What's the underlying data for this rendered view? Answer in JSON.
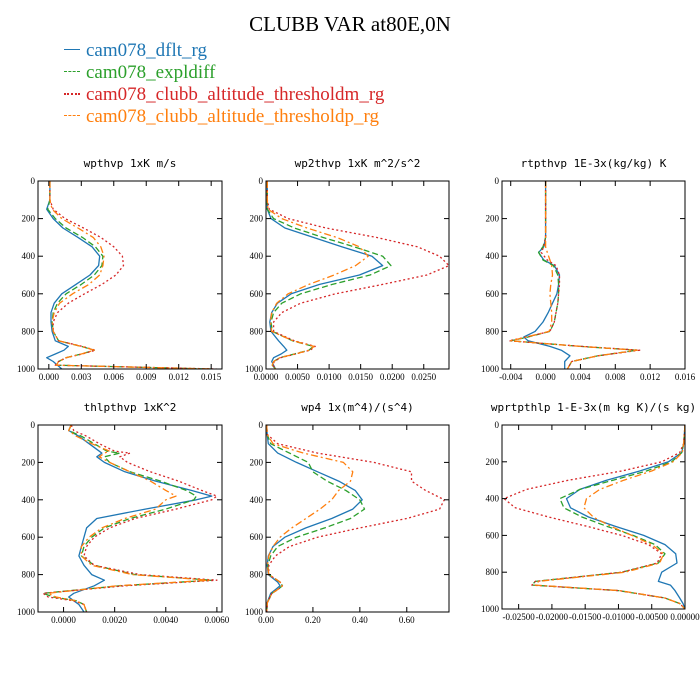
{
  "title": "CLUBB VAR at80E,0N",
  "legend": [
    {
      "name": "cam078_dflt_rg",
      "color": "#1f77b4",
      "dash": "solid"
    },
    {
      "name": "cam078_expldiff",
      "color": "#2ca02c",
      "dash": "dash"
    },
    {
      "name": "cam078_clubb_altitude_thresholdm_rg",
      "color": "#d62728",
      "dash": "dot"
    },
    {
      "name": "cam078_clubb_altitude_thresholdp_rg",
      "color": "#ff7f0e",
      "dash": "dashdot"
    }
  ],
  "chart_data": [
    {
      "type": "line",
      "title": "wpthvp  1xK m/s",
      "xlim": [
        -0.001,
        0.016
      ],
      "ylim": [
        1000,
        0
      ],
      "xticks": [
        "0.000",
        "0.003",
        "0.006",
        "0.009",
        "0.012",
        "0.015"
      ],
      "xtick_values": [
        0.0,
        0.003,
        0.006,
        0.009,
        0.012,
        0.015
      ],
      "yticks": [
        "0",
        "200",
        "400",
        "600",
        "800",
        "1000"
      ],
      "ytick_values": [
        0,
        200,
        400,
        600,
        800,
        1000
      ],
      "y": [
        0,
        100,
        150,
        200,
        250,
        300,
        350,
        400,
        450,
        500,
        550,
        600,
        650,
        700,
        750,
        800,
        850,
        880,
        900,
        920,
        940,
        960,
        980,
        1000
      ],
      "series": [
        {
          "name": "cam078_dflt_rg",
          "x": [
            0.0001,
            0.0001,
            -0.0002,
            0.0004,
            0.0013,
            0.0027,
            0.004,
            0.0047,
            0.0046,
            0.0038,
            0.0025,
            0.0012,
            0.0005,
            0.0002,
            0.0002,
            0.0003,
            0.0006,
            0.0018,
            0.0014,
            0.0006,
            -0.0002,
            0.0004,
            0.0008,
            0.0012
          ]
        },
        {
          "name": "cam078_expldiff",
          "x": [
            0.0001,
            0.0001,
            -0.0001,
            0.0006,
            0.0016,
            0.0031,
            0.0043,
            0.005,
            0.0049,
            0.0042,
            0.003,
            0.0016,
            0.0008,
            0.0004,
            0.0003,
            0.0004,
            0.0009,
            0.003,
            0.0042,
            0.003,
            0.0016,
            0.0009,
            0.0007,
            0.015
          ]
        },
        {
          "name": "cam078_clubb_altitude_thresholdm_rg",
          "x": [
            0.0001,
            0.0001,
            0.0004,
            0.0015,
            0.0032,
            0.0048,
            0.006,
            0.0068,
            0.0069,
            0.0062,
            0.0049,
            0.0033,
            0.0018,
            0.0008,
            0.0004,
            0.0004,
            0.0009,
            0.0031,
            0.0043,
            0.0031,
            0.0016,
            0.0009,
            0.0006,
            0.0155
          ]
        },
        {
          "name": "cam078_clubb_altitude_thresholdp_rg",
          "x": [
            0.0001,
            0.0001,
            0.0003,
            0.0012,
            0.0027,
            0.0041,
            0.0048,
            0.0051,
            0.005,
            0.0047,
            0.0037,
            0.0022,
            0.001,
            0.0005,
            0.0003,
            0.0004,
            0.0009,
            0.003,
            0.0042,
            0.003,
            0.0016,
            0.0009,
            0.0007,
            0.015
          ]
        }
      ]
    },
    {
      "type": "line",
      "title": "wp2thvp  1xK m^2/s^2",
      "xlim": [
        0.0,
        0.029
      ],
      "ylim": [
        1000,
        0
      ],
      "xticks": [
        "0.0000",
        "0.0050",
        "0.0100",
        "0.0150",
        "0.0200",
        "0.0250"
      ],
      "xtick_values": [
        0.0,
        0.005,
        0.01,
        0.015,
        0.02,
        0.025
      ],
      "yticks": [
        "0",
        "200",
        "400",
        "600",
        "800",
        "1000"
      ],
      "ytick_values": [
        0,
        200,
        400,
        600,
        800,
        1000
      ],
      "y": [
        0,
        100,
        150,
        200,
        250,
        300,
        350,
        400,
        450,
        500,
        550,
        600,
        650,
        700,
        750,
        800,
        850,
        880,
        900,
        920,
        940,
        960,
        980,
        1000
      ],
      "series": [
        {
          "name": "cam078_dflt_rg",
          "x": [
            0.0002,
            0.0002,
            0.0002,
            0.0008,
            0.003,
            0.0075,
            0.012,
            0.0168,
            0.0185,
            0.0148,
            0.0085,
            0.004,
            0.0018,
            0.0009,
            0.0006,
            0.0008,
            0.002,
            0.0028,
            0.0033,
            0.0024,
            0.0012,
            0.0009,
            0.0012,
            0.0015
          ]
        },
        {
          "name": "cam078_expldiff",
          "x": [
            0.0002,
            0.0002,
            0.0002,
            0.0012,
            0.0045,
            0.009,
            0.014,
            0.0185,
            0.0198,
            0.0165,
            0.0105,
            0.0055,
            0.0025,
            0.0012,
            0.0008,
            0.001,
            0.0042,
            0.0075,
            0.0068,
            0.0045,
            0.0022,
            0.0012,
            0.001,
            0.0015
          ]
        },
        {
          "name": "cam078_clubb_altitude_thresholdm_rg",
          "x": [
            0.0002,
            0.0002,
            0.0005,
            0.0035,
            0.0095,
            0.0175,
            0.024,
            0.0275,
            0.029,
            0.0255,
            0.0185,
            0.011,
            0.0055,
            0.0025,
            0.0012,
            0.0012,
            0.0045,
            0.0078,
            0.007,
            0.0047,
            0.0023,
            0.0013,
            0.0011,
            0.0015
          ]
        },
        {
          "name": "cam078_clubb_altitude_thresholdp_rg",
          "x": [
            0.0002,
            0.0002,
            0.0003,
            0.0025,
            0.0065,
            0.0112,
            0.0148,
            0.0162,
            0.0142,
            0.0108,
            0.0068,
            0.0035,
            0.0017,
            0.0009,
            0.0007,
            0.0009,
            0.0043,
            0.0076,
            0.0069,
            0.0046,
            0.0022,
            0.0012,
            0.001,
            0.0015
          ]
        }
      ]
    },
    {
      "type": "line",
      "title": "rtpthvp  1E-3x(kg/kg) K",
      "xlim": [
        -0.005,
        0.016
      ],
      "ylim": [
        1000,
        0
      ],
      "xticks": [
        "-0.004",
        "0.000",
        "0.004",
        "0.008",
        "0.012",
        "0.016"
      ],
      "xtick_values": [
        -0.004,
        0.0,
        0.004,
        0.008,
        0.012,
        0.016
      ],
      "yticks": [
        "0",
        "200",
        "400",
        "600",
        "800",
        "1000"
      ],
      "ytick_values": [
        0,
        200,
        400,
        600,
        800,
        1000
      ],
      "y": [
        0,
        100,
        200,
        300,
        350,
        380,
        420,
        450,
        500,
        550,
        600,
        650,
        700,
        750,
        800,
        830,
        850,
        880,
        900,
        930,
        960,
        1000
      ],
      "series": [
        {
          "name": "cam078_dflt_rg",
          "x": [
            0.0,
            0.0,
            0.0,
            0.0,
            -0.0002,
            -0.0008,
            -0.0002,
            0.001,
            0.0016,
            0.0015,
            0.0013,
            0.0008,
            0.0003,
            -0.0003,
            -0.0012,
            -0.0025,
            -0.002,
            0.0005,
            0.0018,
            0.0028,
            0.0022,
            0.0022
          ]
        },
        {
          "name": "cam078_expldiff",
          "x": [
            0.0,
            0.0,
            0.0,
            0.0,
            -0.0003,
            -0.0008,
            -0.0003,
            0.0009,
            0.0014,
            0.0015,
            0.0015,
            0.0014,
            0.0012,
            0.001,
            0.0005,
            -0.002,
            -0.004,
            0.004,
            0.0105,
            0.006,
            0.003,
            0.0025
          ]
        },
        {
          "name": "cam078_clubb_altitude_thresholdm_rg",
          "x": [
            0.0,
            0.0,
            0.0,
            0.0,
            -0.0002,
            -0.0005,
            0.0002,
            0.0012,
            0.0016,
            0.0016,
            0.0015,
            0.0014,
            0.0012,
            0.001,
            0.0005,
            -0.0022,
            -0.0042,
            0.0042,
            0.0108,
            0.006,
            0.003,
            0.0025
          ]
        },
        {
          "name": "cam078_clubb_altitude_thresholdp_rg",
          "x": [
            0.0,
            0.0,
            0.0,
            0.0,
            0.0,
            0.0002,
            0.0005,
            0.0007,
            0.0008,
            0.0006,
            0.0005,
            0.0006,
            0.0007,
            0.0007,
            0.0004,
            -0.0022,
            -0.004,
            0.004,
            0.0105,
            0.006,
            0.003,
            0.0025
          ]
        }
      ]
    },
    {
      "type": "line",
      "title": "thlpthvp  1xK^2",
      "xlim": [
        -0.001,
        0.0062
      ],
      "ylim": [
        1000,
        0
      ],
      "xticks": [
        "0.0000",
        "0.0020",
        "0.0040",
        "0.0060"
      ],
      "xtick_values": [
        0.0,
        0.002,
        0.004,
        0.006
      ],
      "yticks": [
        "0",
        "200",
        "400",
        "600",
        "800",
        "1000"
      ],
      "ytick_values": [
        0,
        200,
        400,
        600,
        800,
        1000
      ],
      "y": [
        0,
        30,
        60,
        100,
        140,
        150,
        170,
        200,
        250,
        300,
        350,
        380,
        400,
        450,
        500,
        550,
        600,
        650,
        700,
        750,
        800,
        830,
        860,
        900,
        920,
        940,
        960,
        1000
      ],
      "series": [
        {
          "name": "cam078_dflt_rg",
          "x": [
            0.0003,
            0.0002,
            0.0006,
            0.001,
            0.0014,
            0.0015,
            0.0013,
            0.0016,
            0.0024,
            0.0036,
            0.005,
            0.0058,
            0.0052,
            0.0032,
            0.0013,
            0.0009,
            0.0008,
            0.0007,
            0.0006,
            0.0008,
            0.0011,
            0.0016,
            0.0012,
            0.0004,
            0.0002,
            0.0004,
            0.0006,
            0.0008
          ]
        },
        {
          "name": "cam078_expldiff",
          "x": [
            0.0003,
            0.0002,
            0.0007,
            0.0012,
            0.0017,
            0.0022,
            0.0016,
            0.0018,
            0.0026,
            0.0038,
            0.0048,
            0.0052,
            0.0051,
            0.004,
            0.0026,
            0.0016,
            0.0011,
            0.0008,
            0.0007,
            0.0012,
            0.0028,
            0.0058,
            0.0022,
            -0.0008,
            -0.0004,
            0.0005,
            0.0008,
            0.0009
          ]
        },
        {
          "name": "cam078_clubb_altitude_thresholdm_rg",
          "x": [
            0.0003,
            0.0004,
            0.0009,
            0.0014,
            0.002,
            0.0026,
            0.0022,
            0.0025,
            0.0034,
            0.0045,
            0.0054,
            0.006,
            0.0058,
            0.0044,
            0.0028,
            0.0018,
            0.0012,
            0.0009,
            0.0008,
            0.0012,
            0.003,
            0.006,
            0.0024,
            -0.0008,
            -0.0006,
            0.0004,
            0.0008,
            0.0009
          ]
        },
        {
          "name": "cam078_clubb_altitude_thresholdp_rg",
          "x": [
            0.0003,
            0.0002,
            0.0005,
            0.0011,
            0.0018,
            0.0016,
            0.0014,
            0.0018,
            0.0026,
            0.0034,
            0.004,
            0.0044,
            0.004,
            0.0036,
            0.0024,
            0.0015,
            0.001,
            0.0007,
            0.0007,
            0.0011,
            0.0027,
            0.0057,
            0.0021,
            -0.0006,
            -0.0003,
            0.0005,
            0.0008,
            0.0009
          ]
        }
      ]
    },
    {
      "type": "line",
      "title": "wp4  1x(m^4)/(s^4)",
      "xlim": [
        0.0,
        0.78
      ],
      "ylim": [
        1000,
        0
      ],
      "xticks": [
        "0.00",
        "0.20",
        "0.40",
        "0.60"
      ],
      "xtick_values": [
        0.0,
        0.2,
        0.4,
        0.6
      ],
      "yticks": [
        "0",
        "200",
        "400",
        "600",
        "800",
        "1000"
      ],
      "ytick_values": [
        0,
        200,
        400,
        600,
        800,
        1000
      ],
      "y": [
        0,
        50,
        100,
        150,
        200,
        250,
        300,
        350,
        400,
        450,
        500,
        550,
        600,
        650,
        700,
        750,
        800,
        840,
        860,
        880,
        900,
        950,
        1000
      ],
      "series": [
        {
          "name": "cam078_dflt_rg",
          "x": [
            0.003,
            0.005,
            0.01,
            0.05,
            0.13,
            0.22,
            0.31,
            0.38,
            0.41,
            0.37,
            0.28,
            0.17,
            0.08,
            0.03,
            0.01,
            0.005,
            0.01,
            0.05,
            0.06,
            0.04,
            0.02,
            0.005,
            0.003
          ]
        },
        {
          "name": "cam078_expldiff",
          "x": [
            0.003,
            0.005,
            0.02,
            0.1,
            0.18,
            0.2,
            0.26,
            0.34,
            0.4,
            0.42,
            0.36,
            0.25,
            0.13,
            0.05,
            0.02,
            0.008,
            0.012,
            0.06,
            0.07,
            0.05,
            0.025,
            0.006,
            0.003
          ]
        },
        {
          "name": "cam078_clubb_altitude_thresholdm_rg",
          "x": [
            0.003,
            0.005,
            0.05,
            0.22,
            0.46,
            0.62,
            0.62,
            0.68,
            0.76,
            0.74,
            0.6,
            0.4,
            0.22,
            0.1,
            0.04,
            0.012,
            0.012,
            0.06,
            0.07,
            0.05,
            0.025,
            0.006,
            0.003
          ]
        },
        {
          "name": "cam078_clubb_altitude_thresholdp_rg",
          "x": [
            0.003,
            0.005,
            0.03,
            0.16,
            0.33,
            0.37,
            0.36,
            0.31,
            0.28,
            0.23,
            0.17,
            0.11,
            0.06,
            0.03,
            0.012,
            0.006,
            0.012,
            0.06,
            0.07,
            0.05,
            0.025,
            0.006,
            0.003
          ]
        }
      ]
    },
    {
      "type": "line",
      "title": "wprtpthlp  1-E-3x(m kg K)/(s kg)",
      "xlim": [
        -0.0275,
        0.0
      ],
      "ylim": [
        1000,
        0
      ],
      "xticks": [
        "-0.02500",
        "-0.02000",
        "-0.01500",
        "-0.01000",
        "-0.00500",
        "0.00000"
      ],
      "xtick_values": [
        -0.025,
        -0.02,
        -0.015,
        -0.01,
        -0.005,
        0.0
      ],
      "yticks": [
        "0",
        "200",
        "400",
        "600",
        "800",
        "1000"
      ],
      "ytick_values": [
        0,
        200,
        400,
        600,
        800,
        1000
      ],
      "y": [
        0,
        100,
        150,
        200,
        250,
        300,
        350,
        400,
        450,
        500,
        550,
        600,
        650,
        700,
        750,
        800,
        850,
        870,
        900,
        940,
        970,
        1000
      ],
      "series": [
        {
          "name": "cam078_dflt_rg",
          "x": [
            0.0,
            -0.0002,
            -0.0005,
            -0.0025,
            -0.0068,
            -0.0118,
            -0.0158,
            -0.0178,
            -0.0172,
            -0.0145,
            -0.0105,
            -0.0062,
            -0.003,
            -0.0014,
            -0.0012,
            -0.0035,
            -0.004,
            -0.0022,
            -0.0015,
            -0.0008,
            -0.0003,
            0.0
          ]
        },
        {
          "name": "cam078_expldiff",
          "x": [
            0.0,
            -0.0002,
            -0.0005,
            -0.002,
            -0.0058,
            -0.0108,
            -0.0158,
            -0.0188,
            -0.0182,
            -0.0155,
            -0.0118,
            -0.0078,
            -0.0045,
            -0.003,
            -0.004,
            -0.0095,
            -0.0225,
            -0.023,
            -0.01,
            -0.003,
            -0.0008,
            0.0
          ]
        },
        {
          "name": "cam078_clubb_altitude_thresholdm_rg",
          "x": [
            0.0,
            -0.0002,
            -0.0008,
            -0.0035,
            -0.0095,
            -0.0175,
            -0.0238,
            -0.0272,
            -0.0255,
            -0.0205,
            -0.0148,
            -0.0095,
            -0.0055,
            -0.0035,
            -0.0042,
            -0.0095,
            -0.0225,
            -0.023,
            -0.01,
            -0.003,
            -0.0008,
            0.0
          ]
        },
        {
          "name": "cam078_clubb_altitude_thresholdp_rg",
          "x": [
            0.0,
            -0.0002,
            -0.0004,
            -0.0018,
            -0.005,
            -0.0092,
            -0.0128,
            -0.0148,
            -0.0152,
            -0.0138,
            -0.0112,
            -0.008,
            -0.005,
            -0.0032,
            -0.0038,
            -0.009,
            -0.022,
            -0.0225,
            -0.0098,
            -0.003,
            -0.0008,
            0.0
          ]
        }
      ]
    }
  ]
}
